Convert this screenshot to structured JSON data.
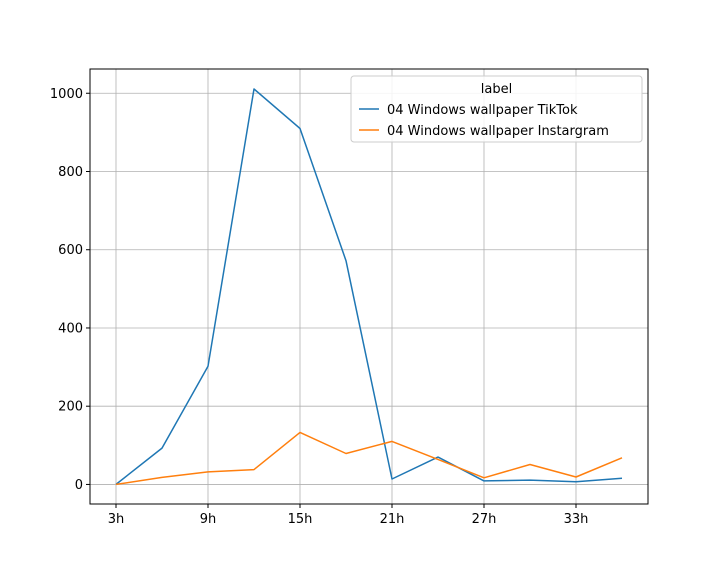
{
  "chart_data": {
    "type": "line",
    "x": [
      "3h",
      "6h",
      "9h",
      "12h",
      "15h",
      "18h",
      "21h",
      "24h",
      "27h",
      "30h",
      "33h",
      "36h"
    ],
    "xtick_labels": [
      "3h",
      "9h",
      "15h",
      "21h",
      "27h",
      "33h"
    ],
    "yticks": [
      0,
      200,
      400,
      600,
      800,
      1000
    ],
    "ylim": [
      -50,
      1062
    ],
    "grid": true,
    "legend": {
      "title": "label",
      "placement": "top-right"
    },
    "series": [
      {
        "name": "04 Windows wallpaper TikTok",
        "color": "#1f77b4",
        "values": [
          0,
          93,
          302,
          1011,
          910,
          572,
          14,
          70,
          9,
          11,
          7,
          16
        ]
      },
      {
        "name": "04 Windows wallpaper Instargram",
        "color": "#ff7f0e",
        "values": [
          0,
          18,
          32,
          38,
          133,
          79,
          110,
          64,
          17,
          51,
          19,
          68
        ]
      }
    ]
  }
}
